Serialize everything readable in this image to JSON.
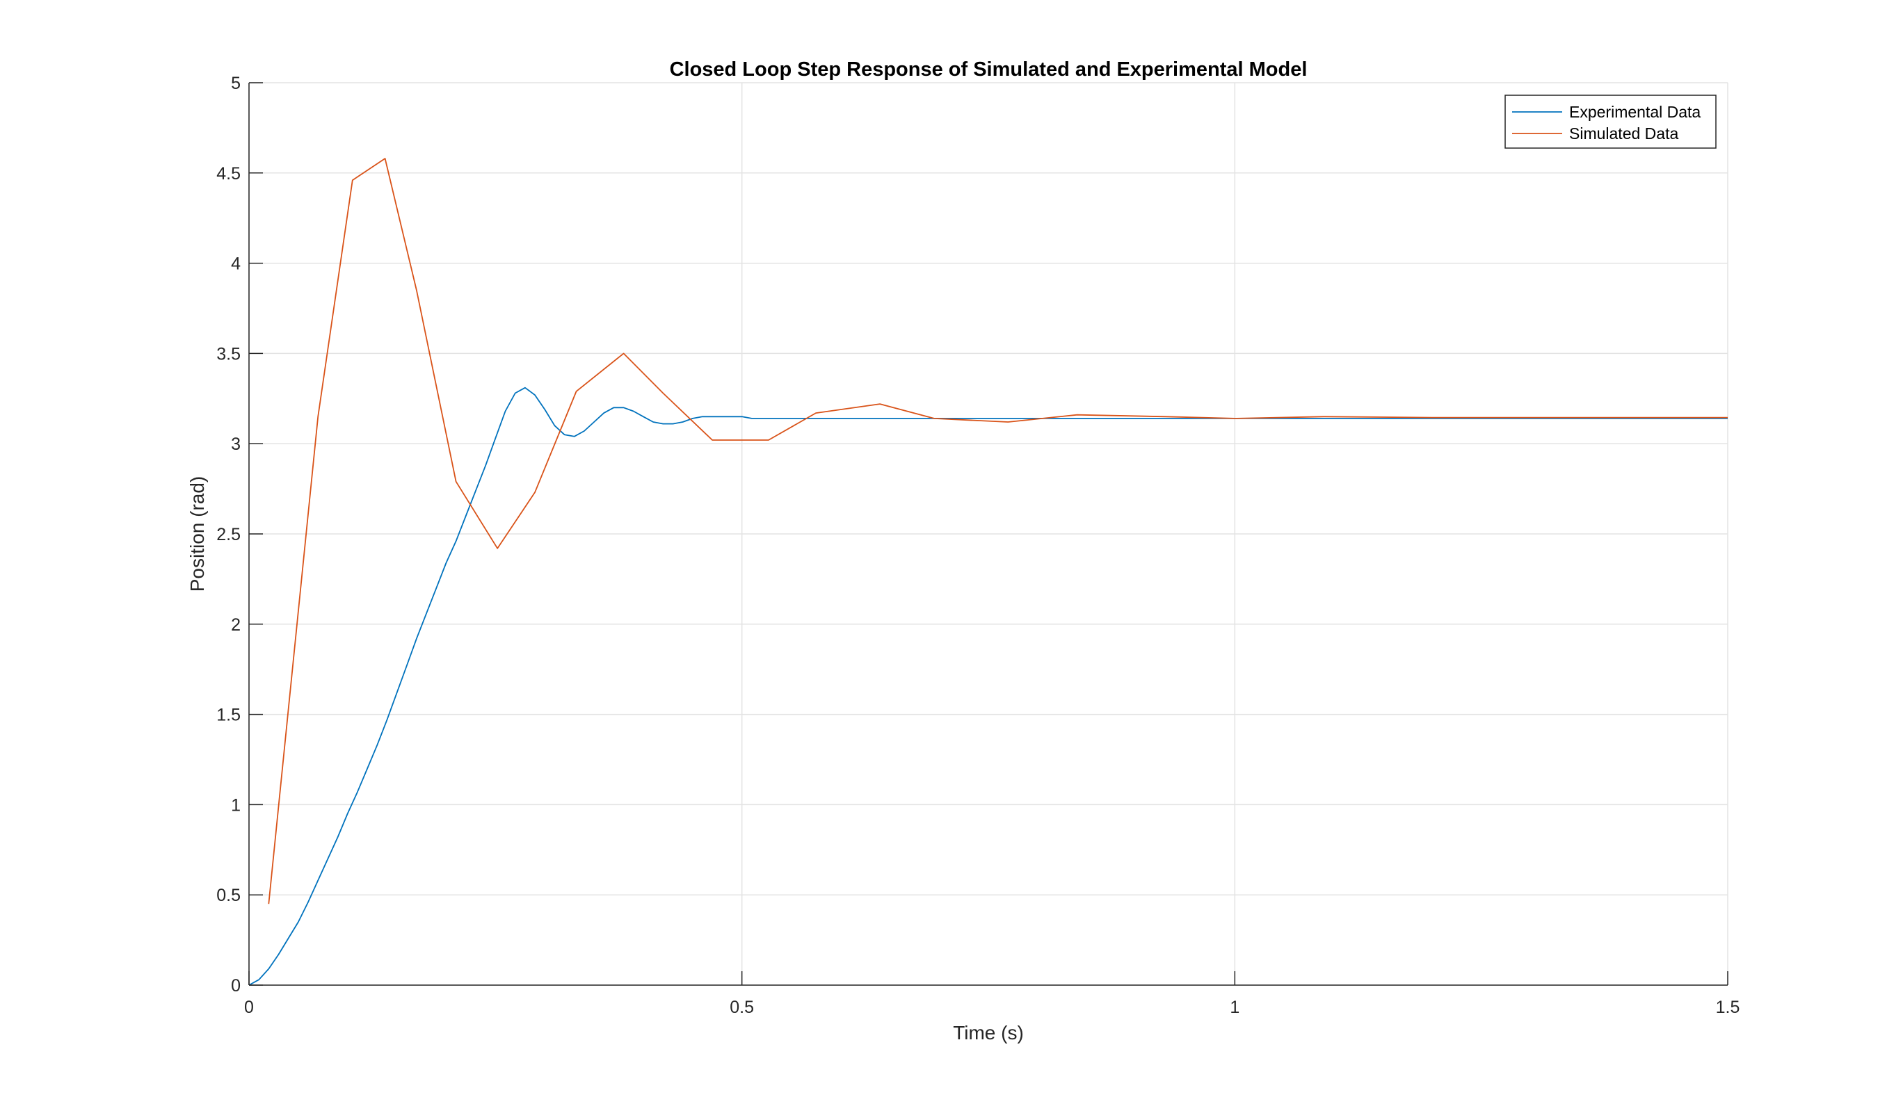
{
  "chart_data": {
    "type": "line",
    "title": "Closed Loop Step Response of Simulated and Experimental Model",
    "xlabel": "Time (s)",
    "ylabel": "Position (rad)",
    "xlim": [
      0,
      1.5
    ],
    "ylim": [
      0,
      5
    ],
    "xticks": [
      0,
      0.5,
      1,
      1.5
    ],
    "xtick_labels": [
      "0",
      "0.5",
      "1",
      "1.5"
    ],
    "yticks": [
      0,
      0.5,
      1,
      1.5,
      2,
      2.5,
      3,
      3.5,
      4,
      4.5,
      5
    ],
    "ytick_labels": [
      "0",
      "0.5",
      "1",
      "1.5",
      "2",
      "2.5",
      "3",
      "3.5",
      "4",
      "4.5",
      "5"
    ],
    "grid": true,
    "legend_position": "top-right",
    "series": [
      {
        "name": "Experimental Data",
        "color": "#0072BD",
        "x": [
          0,
          0.01,
          0.02,
          0.03,
          0.04,
          0.05,
          0.06,
          0.07,
          0.08,
          0.09,
          0.1,
          0.11,
          0.12,
          0.13,
          0.14,
          0.15,
          0.16,
          0.17,
          0.18,
          0.19,
          0.2,
          0.21,
          0.22,
          0.23,
          0.24,
          0.25,
          0.26,
          0.27,
          0.28,
          0.29,
          0.3,
          0.31,
          0.32,
          0.33,
          0.34,
          0.35,
          0.36,
          0.37,
          0.38,
          0.39,
          0.4,
          0.41,
          0.42,
          0.43,
          0.44,
          0.45,
          0.46,
          0.47,
          0.48,
          0.49,
          0.5,
          0.51,
          0.53,
          0.6,
          0.8,
          1.0,
          1.2,
          1.5
        ],
        "values": [
          0,
          0.03,
          0.09,
          0.17,
          0.26,
          0.35,
          0.46,
          0.58,
          0.7,
          0.82,
          0.95,
          1.07,
          1.2,
          1.33,
          1.47,
          1.62,
          1.77,
          1.92,
          2.06,
          2.2,
          2.34,
          2.46,
          2.6,
          2.74,
          2.88,
          3.03,
          3.18,
          3.28,
          3.31,
          3.27,
          3.19,
          3.1,
          3.05,
          3.04,
          3.07,
          3.12,
          3.17,
          3.2,
          3.2,
          3.18,
          3.15,
          3.12,
          3.11,
          3.11,
          3.12,
          3.14,
          3.15,
          3.15,
          3.15,
          3.15,
          3.15,
          3.14,
          3.14,
          3.14,
          3.14,
          3.14,
          3.14,
          3.14
        ]
      },
      {
        "name": "Simulated Data",
        "color": "#D95319",
        "x": [
          0.02,
          0.07,
          0.105,
          0.138,
          0.17,
          0.21,
          0.252,
          0.29,
          0.332,
          0.38,
          0.42,
          0.47,
          0.527,
          0.575,
          0.64,
          0.695,
          0.77,
          0.84,
          0.93,
          1.0,
          1.09,
          1.2,
          1.5
        ],
        "values": [
          0.45,
          3.15,
          4.46,
          4.58,
          3.85,
          2.79,
          2.42,
          2.73,
          3.29,
          3.5,
          3.28,
          3.02,
          3.02,
          3.17,
          3.22,
          3.14,
          3.12,
          3.16,
          3.15,
          3.14,
          3.15,
          3.145,
          3.145
        ]
      }
    ]
  }
}
